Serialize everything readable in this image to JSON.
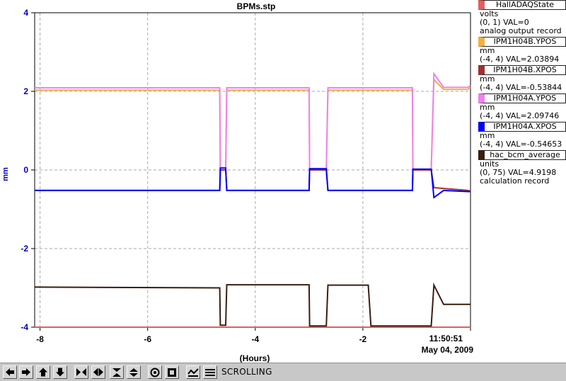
{
  "window": {
    "status_text": "SCROLLING"
  },
  "chart_data": {
    "type": "line",
    "title": "BPMs.stp",
    "xlabel": "(Hours)",
    "ylabel": "mm",
    "xlim": [
      -8.1,
      0
    ],
    "ylim": [
      -4,
      4
    ],
    "yticks": [
      -4,
      -2,
      0,
      2,
      4
    ],
    "xticks": [
      -8,
      -6,
      -4,
      -2
    ],
    "grid": true,
    "end_time": "11:50:51",
    "end_date": "May 04, 2009",
    "series": [
      {
        "name": "HallADAQState",
        "units": "volts",
        "range": "(0, 1)",
        "value": "VAL=0",
        "desc": "analog output record",
        "color": "#e06060",
        "points": [
          [
            -8.1,
            -4
          ],
          [
            0,
            -4
          ]
        ]
      },
      {
        "name": "IPM1H04B.YPOS",
        "units": "mm",
        "range": "(-4, 4)",
        "value": "VAL=2.03894",
        "color": "#f5b03c",
        "points": [
          [
            -8.1,
            2.03
          ],
          [
            -4.66,
            2.03
          ],
          [
            -4.65,
            0.0
          ],
          [
            -4.55,
            0.0
          ],
          [
            -4.53,
            2.03
          ],
          [
            -3.0,
            2.03
          ],
          [
            -2.99,
            0.0
          ],
          [
            -2.68,
            0.0
          ],
          [
            -2.65,
            2.03
          ],
          [
            -1.08,
            2.03
          ],
          [
            -1.07,
            0.0
          ],
          [
            -0.73,
            0.0
          ],
          [
            -0.68,
            2.3
          ],
          [
            -0.5,
            2.05
          ],
          [
            -0.05,
            2.05
          ],
          [
            0,
            2.1
          ]
        ]
      },
      {
        "name": "IPM1H04B.XPOS",
        "units": "mm",
        "range": "(-4, 4)",
        "value": "VAL=-0.53844",
        "color": "#a03030",
        "points": [
          [
            -8.1,
            -0.52
          ],
          [
            -4.66,
            -0.52
          ],
          [
            -4.65,
            0.0
          ],
          [
            -4.55,
            0.0
          ],
          [
            -4.53,
            -0.52
          ],
          [
            -3.0,
            -0.52
          ],
          [
            -2.99,
            0.0
          ],
          [
            -2.68,
            0.0
          ],
          [
            -2.65,
            -0.52
          ],
          [
            -1.08,
            -0.52
          ],
          [
            -1.07,
            0.0
          ],
          [
            -0.73,
            0.0
          ],
          [
            -0.68,
            -0.45
          ],
          [
            -0.05,
            -0.52
          ],
          [
            0,
            -0.54
          ]
        ]
      },
      {
        "name": "IPM1H04A.YPOS",
        "units": "mm",
        "range": "(-4, 4)",
        "value": "VAL=2.09746",
        "color": "#ee82ee",
        "points": [
          [
            -8.1,
            2.09
          ],
          [
            -4.66,
            2.09
          ],
          [
            -4.65,
            0.0
          ],
          [
            -4.55,
            0.0
          ],
          [
            -4.53,
            2.09
          ],
          [
            -3.0,
            2.09
          ],
          [
            -2.99,
            0.0
          ],
          [
            -2.68,
            0.0
          ],
          [
            -2.65,
            2.09
          ],
          [
            -1.08,
            2.09
          ],
          [
            -1.07,
            0.0
          ],
          [
            -0.73,
            0.0
          ],
          [
            -0.68,
            2.45
          ],
          [
            -0.5,
            2.1
          ],
          [
            -0.05,
            2.1
          ],
          [
            0,
            2.15
          ]
        ]
      },
      {
        "name": "IPM1H04A.XPOS",
        "units": "mm",
        "range": "(-4, 4)",
        "value": "VAL=-0.54653",
        "color": "#0000ff",
        "points": [
          [
            -8.1,
            -0.52
          ],
          [
            -4.66,
            -0.52
          ],
          [
            -4.65,
            0.05
          ],
          [
            -4.55,
            0.05
          ],
          [
            -4.53,
            -0.52
          ],
          [
            -3.0,
            -0.52
          ],
          [
            -2.99,
            0.03
          ],
          [
            -2.68,
            0.03
          ],
          [
            -2.65,
            -0.52
          ],
          [
            -1.08,
            -0.52
          ],
          [
            -1.07,
            0.02
          ],
          [
            -0.73,
            0.02
          ],
          [
            -0.68,
            -0.7
          ],
          [
            -0.5,
            -0.52
          ],
          [
            -0.05,
            -0.55
          ],
          [
            0,
            -0.55
          ]
        ]
      },
      {
        "name": "hac_bcm_average",
        "units": "units",
        "range": "(0, 75)",
        "value": "VAL=4.9198",
        "desc": "calculation record",
        "color": "#3a1e10",
        "points": [
          [
            -8.1,
            -2.98
          ],
          [
            -4.66,
            -3.0
          ],
          [
            -4.65,
            -3.95
          ],
          [
            -4.55,
            -3.95
          ],
          [
            -4.53,
            -2.92
          ],
          [
            -3.0,
            -2.92
          ],
          [
            -2.99,
            -3.97
          ],
          [
            -2.68,
            -3.97
          ],
          [
            -2.65,
            -2.93
          ],
          [
            -1.9,
            -2.93
          ],
          [
            -1.85,
            -3.97
          ],
          [
            -0.73,
            -3.97
          ],
          [
            -0.68,
            -2.93
          ],
          [
            -0.5,
            -3.42
          ],
          [
            -0.05,
            -3.42
          ],
          [
            0,
            -3.42
          ]
        ]
      }
    ]
  }
}
